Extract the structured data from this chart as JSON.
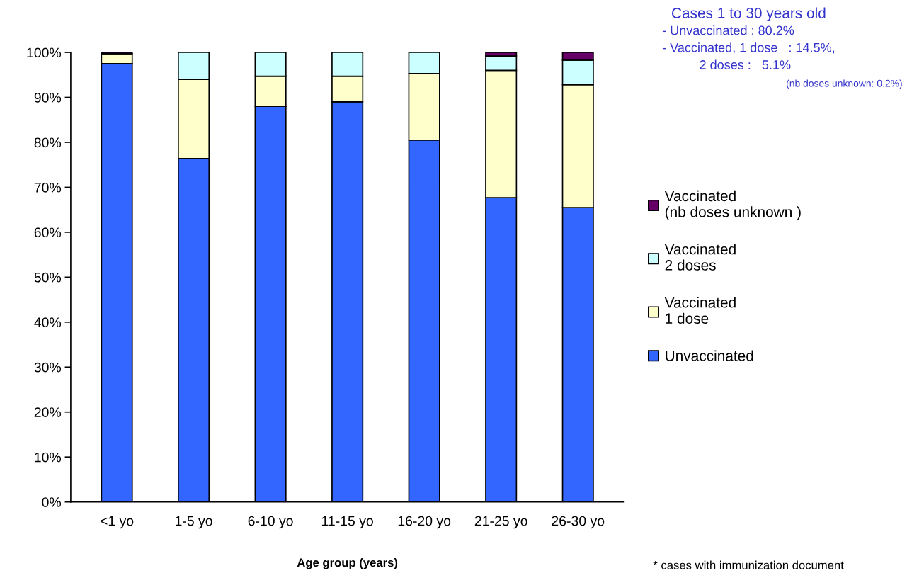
{
  "chart_data": {
    "type": "bar",
    "stacked": true,
    "xlabel": "Age group (years)",
    "categories": [
      "<1 yo",
      "1-5 yo",
      "6-10 yo",
      "11-15 yo",
      "16-20 yo",
      "21-25 yo",
      "26-30 yo"
    ],
    "series": [
      {
        "name": "Unvaccinated",
        "color": "#3366ff",
        "values": [
          97.5,
          76.4,
          88.0,
          89.0,
          80.5,
          67.7,
          65.5
        ]
      },
      {
        "name": "Vaccinated\n1 dose",
        "color": "#ffffcc",
        "values": [
          2.2,
          17.6,
          6.7,
          5.7,
          14.8,
          28.3,
          27.3
        ]
      },
      {
        "name": "Vaccinated\n2 doses",
        "color": "#ccffff",
        "values": [
          null,
          6.0,
          5.3,
          5.3,
          4.7,
          3.2,
          5.5
        ]
      },
      {
        "name": "Vaccinated\n(nb doses unknown )",
        "color": "#660066",
        "values": [
          0.3,
          null,
          null,
          null,
          null,
          0.8,
          1.7
        ]
      }
    ],
    "ylim": [
      0,
      100
    ],
    "yticks": [
      {
        "value": 0,
        "label": "0%"
      },
      {
        "value": 10,
        "label": "10%"
      },
      {
        "value": 20,
        "label": "20%"
      },
      {
        "value": 30,
        "label": "30%"
      },
      {
        "value": 40,
        "label": "40%"
      },
      {
        "value": 50,
        "label": "50%"
      },
      {
        "value": 60,
        "label": "60%"
      },
      {
        "value": 70,
        "label": "70%"
      },
      {
        "value": 80,
        "label": "80%"
      },
      {
        "value": 90,
        "label": "90%"
      },
      {
        "value": 100,
        "label": "100%"
      }
    ],
    "grid": false,
    "legend": "right",
    "annotations": [
      "Cases 1 to 30 years old",
      "- Unvaccinated : 80.2%",
      "- Vaccinated, 1 dose   : 14.5%,",
      "2 doses :   5.1%",
      "(nb doses unknown: 0.2%)",
      "* cases with immunization document"
    ]
  }
}
